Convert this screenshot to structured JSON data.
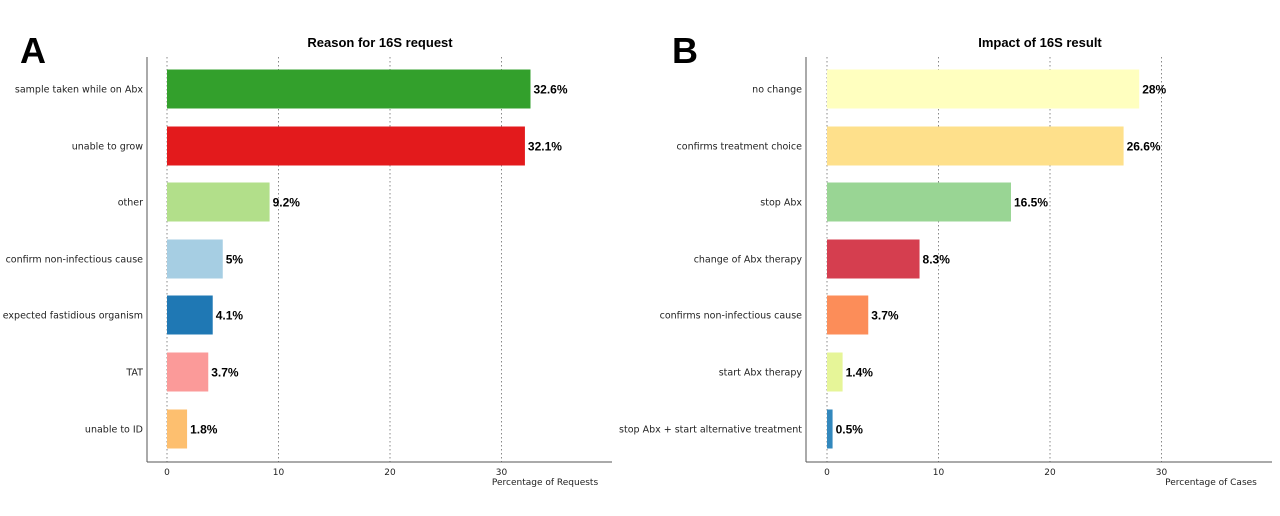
{
  "chart_data": [
    {
      "type": "bar",
      "orientation": "horizontal",
      "panel_label": "A",
      "title": "Reason for 16S request",
      "xlabel": "Percentage of Requests",
      "ylabel": "",
      "xlim": [
        0,
        40
      ],
      "xticks": [
        0,
        10,
        20,
        30
      ],
      "grid": true,
      "categories": [
        "sample taken while on Abx",
        "unable to grow",
        "other",
        "confirm non-infectious cause",
        "expected fastidious organism",
        "TAT",
        "unable to ID"
      ],
      "values": [
        32.6,
        32.1,
        9.2,
        5,
        4.1,
        3.7,
        1.8
      ],
      "labels": [
        "32.6%",
        "32.1%",
        "9.2%",
        "5%",
        "4.1%",
        "3.7%",
        "1.8%"
      ],
      "colors": [
        "#33a02c",
        "#e31a1c",
        "#b2df8a",
        "#a6cee3",
        "#1f78b4",
        "#fb9a99",
        "#fdbf6f"
      ]
    },
    {
      "type": "bar",
      "orientation": "horizontal",
      "panel_label": "B",
      "title": "Impact of 16S result",
      "xlabel": "Percentage of Cases",
      "ylabel": "",
      "xlim": [
        0,
        40
      ],
      "xticks": [
        0,
        10,
        20,
        30
      ],
      "grid": true,
      "categories": [
        "no change",
        "confirms treatment choice",
        "stop Abx",
        "change of Abx therapy",
        "confirms non-infectious cause",
        "start Abx therapy",
        "stop Abx + start alternative treatment"
      ],
      "values": [
        28,
        26.6,
        16.5,
        8.3,
        3.7,
        1.4,
        0.5
      ],
      "labels": [
        "28%",
        "26.6%",
        "16.5%",
        "8.3%",
        "3.7%",
        "1.4%",
        "0.5%"
      ],
      "colors": [
        "#ffffbf",
        "#fee08b",
        "#99d594",
        "#d53e4f",
        "#fc8d59",
        "#e6f598",
        "#3288bd"
      ]
    }
  ]
}
